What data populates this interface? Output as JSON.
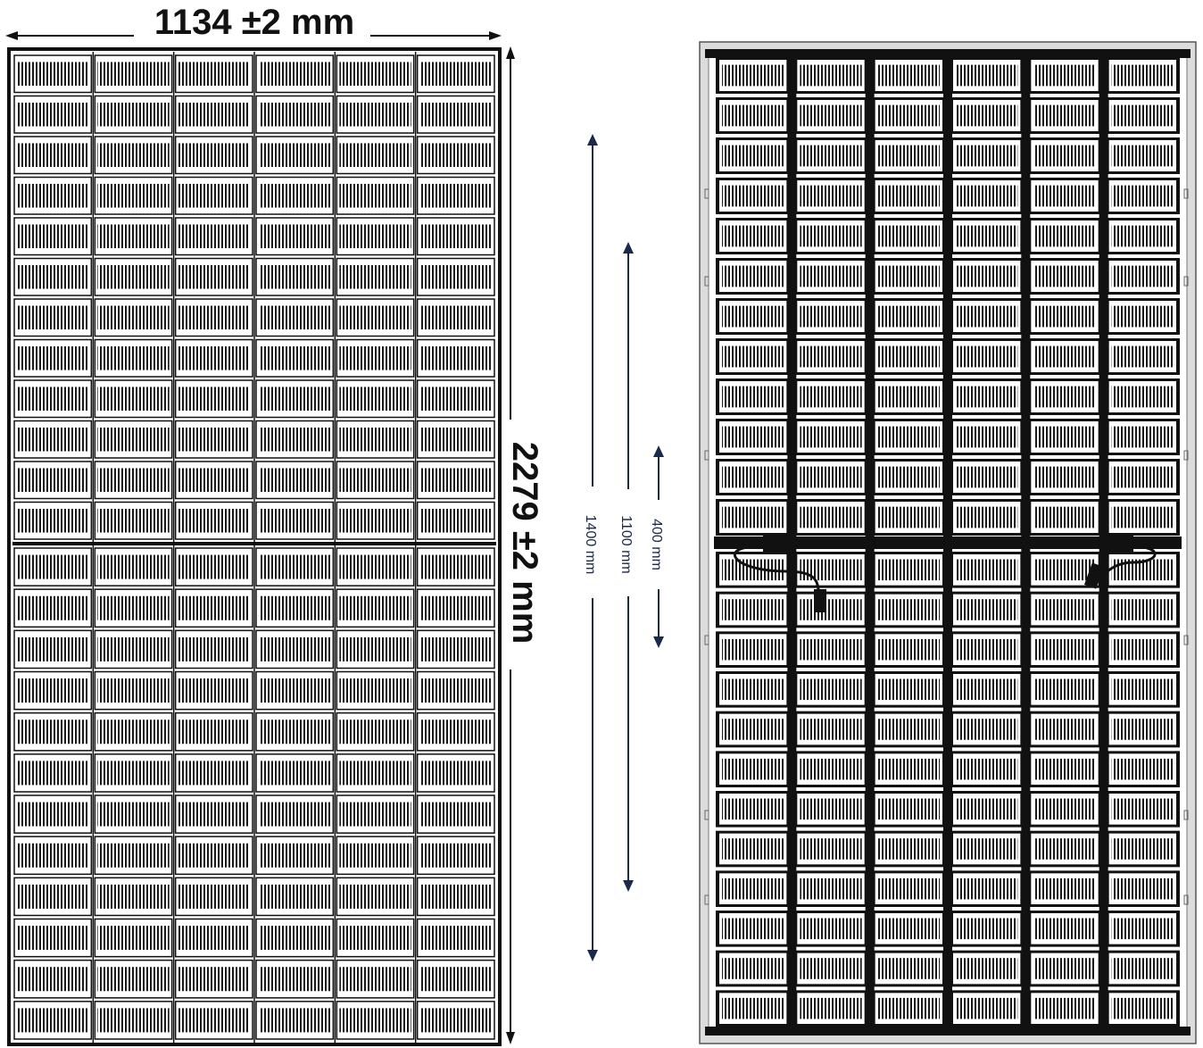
{
  "front_panel": {
    "width_label": "1134 ±2 mm",
    "height_label": "2279 ±2 mm",
    "cell_columns": 6,
    "cell_rows_per_half": 12
  },
  "rear_panel": {
    "cell_columns": 6,
    "cell_rows_per_half": 12
  },
  "mounting_dimensions": [
    {
      "label": "1400 mm"
    },
    {
      "label": "1100 mm"
    },
    {
      "label": "400 mm"
    }
  ],
  "colors": {
    "frame": "#111111",
    "accent": "#1b2a4a",
    "rear_frame": "#d9d9d9"
  }
}
